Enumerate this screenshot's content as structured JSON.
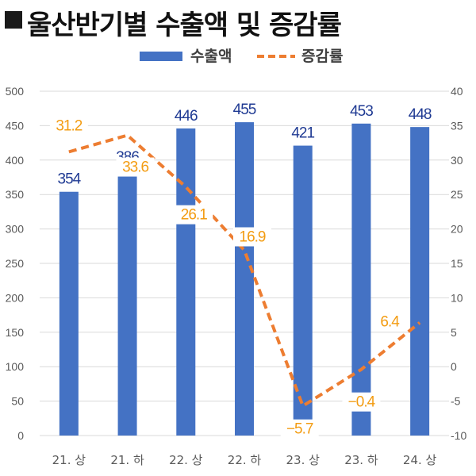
{
  "title": "울산반기별 수출액 및 증감률",
  "colors": {
    "bar": "#4472C4",
    "line": "#ED7D31",
    "bar_label": "#1F3A93",
    "line_label": "#F39C12",
    "grid": "#d9d9d9",
    "tick": "#595959"
  },
  "chart_data": {
    "type": "bar",
    "title": "울산반기별 수출액 및 증감률",
    "categories": [
      "21. 상",
      "21. 하",
      "22. 상",
      "22. 하",
      "23. 상",
      "23. 하",
      "24. 상"
    ],
    "series": [
      {
        "name": "수출액",
        "type": "bar",
        "axis": "left",
        "values": [
          354,
          386,
          446,
          455,
          421,
          453,
          448
        ],
        "labels": [
          "354",
          "386",
          "446",
          "455",
          "421",
          "453",
          "448"
        ]
      },
      {
        "name": "증감률",
        "type": "line",
        "style": "dashed",
        "axis": "right",
        "values": [
          31.2,
          33.6,
          26.1,
          16.9,
          -5.7,
          -0.4,
          6.4
        ],
        "labels": [
          "31.2",
          "33.6",
          "26.1",
          "16.9",
          "−5.7",
          "−0.4",
          "6.4"
        ]
      }
    ],
    "y_left": {
      "min": 0,
      "max": 500,
      "step": 50
    },
    "y_right": {
      "min": -10,
      "max": 40,
      "step": 5
    },
    "legend_position": "top",
    "grid": true
  }
}
